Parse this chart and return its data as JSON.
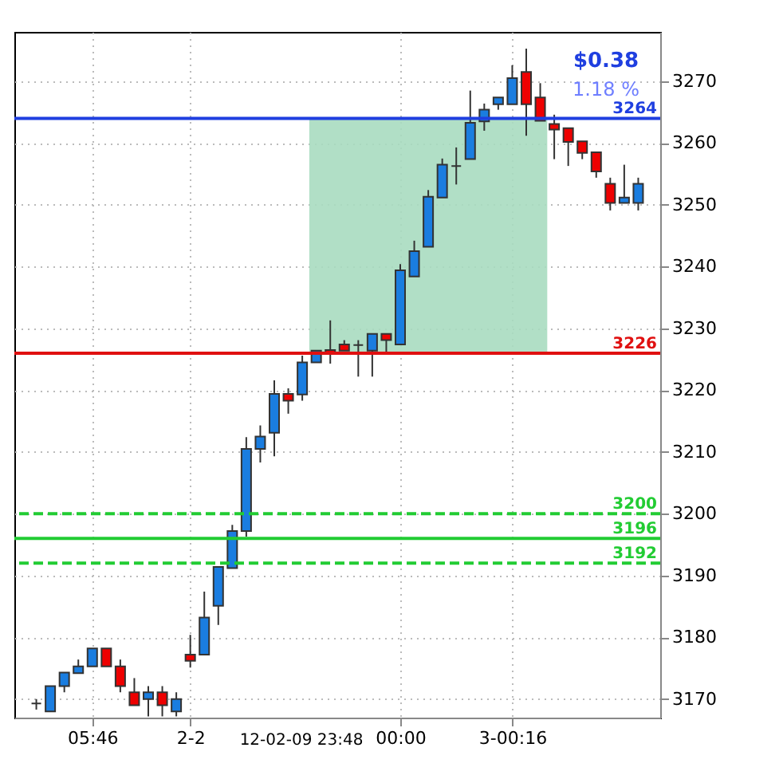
{
  "chart_data": {
    "type": "candlestick",
    "categories": [
      null,
      null,
      null,
      null,
      "05:46",
      null,
      null,
      null,
      null,
      null,
      null,
      "2-2",
      null,
      null,
      null,
      null,
      null,
      null,
      null,
      null,
      null,
      null,
      null,
      null,
      null,
      null,
      "00:00",
      null,
      null,
      null,
      null,
      null,
      null,
      null,
      "3-00:16",
      null,
      null,
      null,
      null,
      null,
      null,
      null,
      null,
      null
    ],
    "ohlc": [
      [
        3169.3,
        3170,
        3168.3,
        3169.3
      ],
      [
        3168,
        3172.1,
        3168,
        3172.1
      ],
      [
        3172.1,
        3174.3,
        3171.1,
        3174.3
      ],
      [
        3174.2,
        3176.4,
        3174.2,
        3175.3
      ],
      [
        3175.3,
        3178.2,
        3175.3,
        3178.2
      ],
      [
        3178.2,
        3178.2,
        3175.3,
        3175.3
      ],
      [
        3175.3,
        3176.4,
        3171.1,
        3172.1
      ],
      [
        3171.1,
        3173.4,
        3169,
        3169
      ],
      [
        3170,
        3172.1,
        3167.2,
        3171.1
      ],
      [
        3171.1,
        3172.1,
        3167.2,
        3169
      ],
      [
        3168,
        3171.1,
        3167.2,
        3170
      ],
      [
        3177.2,
        3180.4,
        3175.1,
        3176.2
      ],
      [
        3177.2,
        3187.4,
        3177.2,
        3183.2
      ],
      [
        3185.1,
        3191.4,
        3182,
        3191.4
      ],
      [
        3191.2,
        3198.2,
        3191.2,
        3197.2
      ],
      [
        3197.2,
        3212.4,
        3196.3,
        3210.5
      ],
      [
        3210.5,
        3214.3,
        3208.3,
        3212.5
      ],
      [
        3213.1,
        3221.6,
        3209.3,
        3219.4
      ],
      [
        3219.4,
        3220.3,
        3216.2,
        3218.3
      ],
      [
        3219.3,
        3225.6,
        3218.3,
        3224.5
      ],
      [
        3224.5,
        3226.4,
        3224.5,
        3226.4
      ],
      [
        3226.5,
        3231.3,
        3224.3,
        3226
      ],
      [
        3227.4,
        3228.1,
        3226.4,
        3226.4
      ],
      [
        3227.3,
        3228.1,
        3222.2,
        3227.3
      ],
      [
        3226.4,
        3229.1,
        3222.2,
        3229.1
      ],
      [
        3229.1,
        3229.1,
        3226,
        3228.1
      ],
      [
        3227.4,
        3240.4,
        3227.4,
        3239.4
      ],
      [
        3238.4,
        3244.2,
        3238.4,
        3242.5
      ],
      [
        3243.2,
        3252.4,
        3243.2,
        3251.3
      ],
      [
        3251.2,
        3257.5,
        3251.2,
        3256.5
      ],
      [
        3256.3,
        3259.3,
        3253.3,
        3256.3
      ],
      [
        3257.4,
        3268.5,
        3257.4,
        3263.3
      ],
      [
        3263.5,
        3266.4,
        3262,
        3265.4
      ],
      [
        3266.3,
        3267.4,
        3265.4,
        3267.4
      ],
      [
        3266.3,
        3272.6,
        3266.3,
        3270.5
      ],
      [
        3271.5,
        3275.3,
        3261.2,
        3266.3
      ],
      [
        3267.4,
        3269.7,
        3263.6,
        3263.6
      ],
      [
        3263.1,
        3264.6,
        3257.4,
        3262.2
      ],
      [
        3262.4,
        3262.4,
        3256.3,
        3260.2
      ],
      [
        3260.3,
        3260.3,
        3257.4,
        3258.4
      ],
      [
        3258.5,
        3258.5,
        3254.4,
        3255.4
      ],
      [
        3253.4,
        3254.4,
        3249.1,
        3250.3
      ],
      [
        3250.3,
        3256.5,
        3250.3,
        3251.2
      ],
      [
        3250.3,
        3254.4,
        3249.1,
        3253.4
      ]
    ],
    "colors": [
      "#333333",
      "#1a7de0",
      "#1a7de0",
      "#1a7de0",
      "#1a7de0",
      "#ee0000",
      "#ee0000",
      "#ee0000",
      "#1a7de0",
      "#ee0000",
      "#1a7de0",
      "#ee0000",
      "#1a7de0",
      "#1a7de0",
      "#1a7de0",
      "#1a7de0",
      "#1a7de0",
      "#1a7de0",
      "#ee0000",
      "#1a7de0",
      "#1a7de0",
      "#ee0000",
      "#ee0000",
      "#333333",
      "#1a7de0",
      "#ee0000",
      "#1a7de0",
      "#1a7de0",
      "#1a7de0",
      "#1a7de0",
      "#333333",
      "#1a7de0",
      "#1a7de0",
      "#1a7de0",
      "#1a7de0",
      "#ee0000",
      "#ee0000",
      "#ee0000",
      "#ee0000",
      "#ee0000",
      "#ee0000",
      "#ee0000",
      "#1a7de0",
      "#1a7de0"
    ],
    "ylim": [
      3167,
      3278
    ],
    "yticks": [
      3170,
      3180,
      3190,
      3200,
      3210,
      3220,
      3230,
      3240,
      3250,
      3260,
      3270
    ],
    "grid": true,
    "ref_lines": [
      {
        "axis": "y",
        "value": 3264,
        "label": "3264",
        "color": "#1f3fe0",
        "line_style": "solid"
      },
      {
        "axis": "y",
        "value": 3226,
        "label": "3226",
        "color": "#e01010",
        "line_style": "solid"
      },
      {
        "axis": "y",
        "value": 3200,
        "label": "3200",
        "color": "#22cc33",
        "line_style": "dashed"
      },
      {
        "axis": "y",
        "value": 3196,
        "label": "3196",
        "color": "#22cc33",
        "line_style": "solid"
      },
      {
        "axis": "y",
        "value": 3192,
        "label": "3192",
        "color": "#22cc33",
        "line_style": "dashed"
      }
    ],
    "bands": [
      {
        "axis": "y",
        "from": 3226,
        "to": 3264,
        "color": "#a8dcc0"
      }
    ],
    "annotations": [
      "$0.38",
      "1.18 %",
      "12-02-09 23:48"
    ]
  }
}
